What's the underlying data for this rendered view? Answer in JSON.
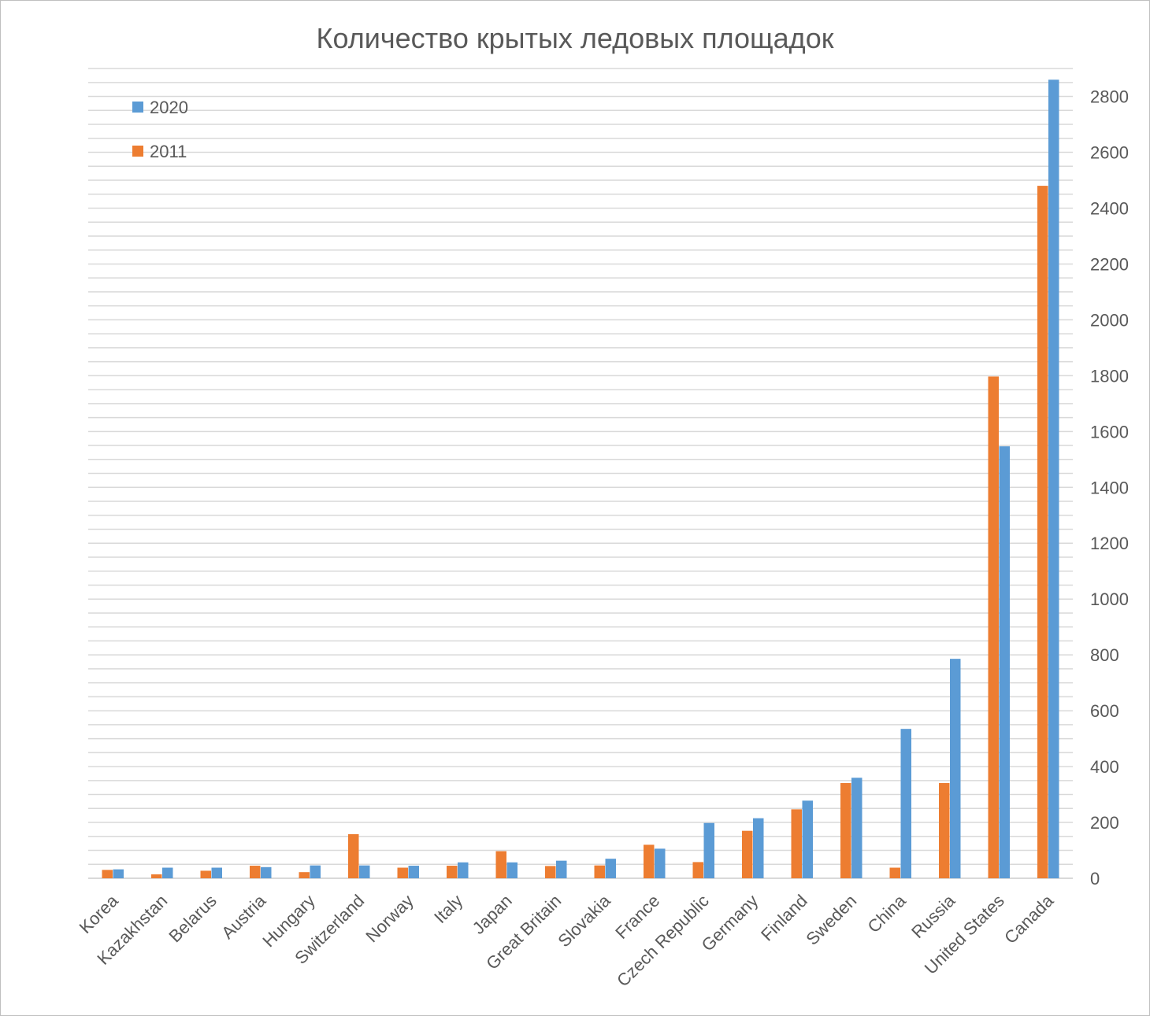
{
  "chart_data": {
    "type": "bar",
    "title": "Количество крытых ледовых площадок",
    "categories": [
      "Korea",
      "Kazakhstan",
      "Belarus",
      "Austria",
      "Hungary",
      "Switzerland",
      "Norway",
      "Italy",
      "Japan",
      "Great Britain",
      "Slovakia",
      "France",
      "Czech Republic",
      "Germany",
      "Finland",
      "Sweden",
      "China",
      "Russia",
      "United States",
      "Canada"
    ],
    "series": [
      {
        "name": "2011",
        "color": "#ed7d31",
        "values": [
          30,
          14,
          27,
          45,
          22,
          158,
          38,
          45,
          97,
          44,
          46,
          120,
          58,
          170,
          247,
          341,
          38,
          341,
          1797,
          2480
        ]
      },
      {
        "name": "2020",
        "color": "#5b9bd5",
        "values": [
          32,
          38,
          38,
          40,
          46,
          46,
          45,
          57,
          57,
          63,
          70,
          106,
          198,
          215,
          278,
          360,
          535,
          786,
          1547,
          2860
        ]
      }
    ],
    "ylim": [
      0,
      2900
    ],
    "y_ticks": [
      0,
      200,
      400,
      600,
      800,
      1000,
      1200,
      1400,
      1600,
      1800,
      2000,
      2200,
      2400,
      2600,
      2800
    ],
    "y_axis_side": "right",
    "gridlines": true,
    "legend": {
      "position": "top-left",
      "order": [
        "2020",
        "2011"
      ]
    }
  }
}
